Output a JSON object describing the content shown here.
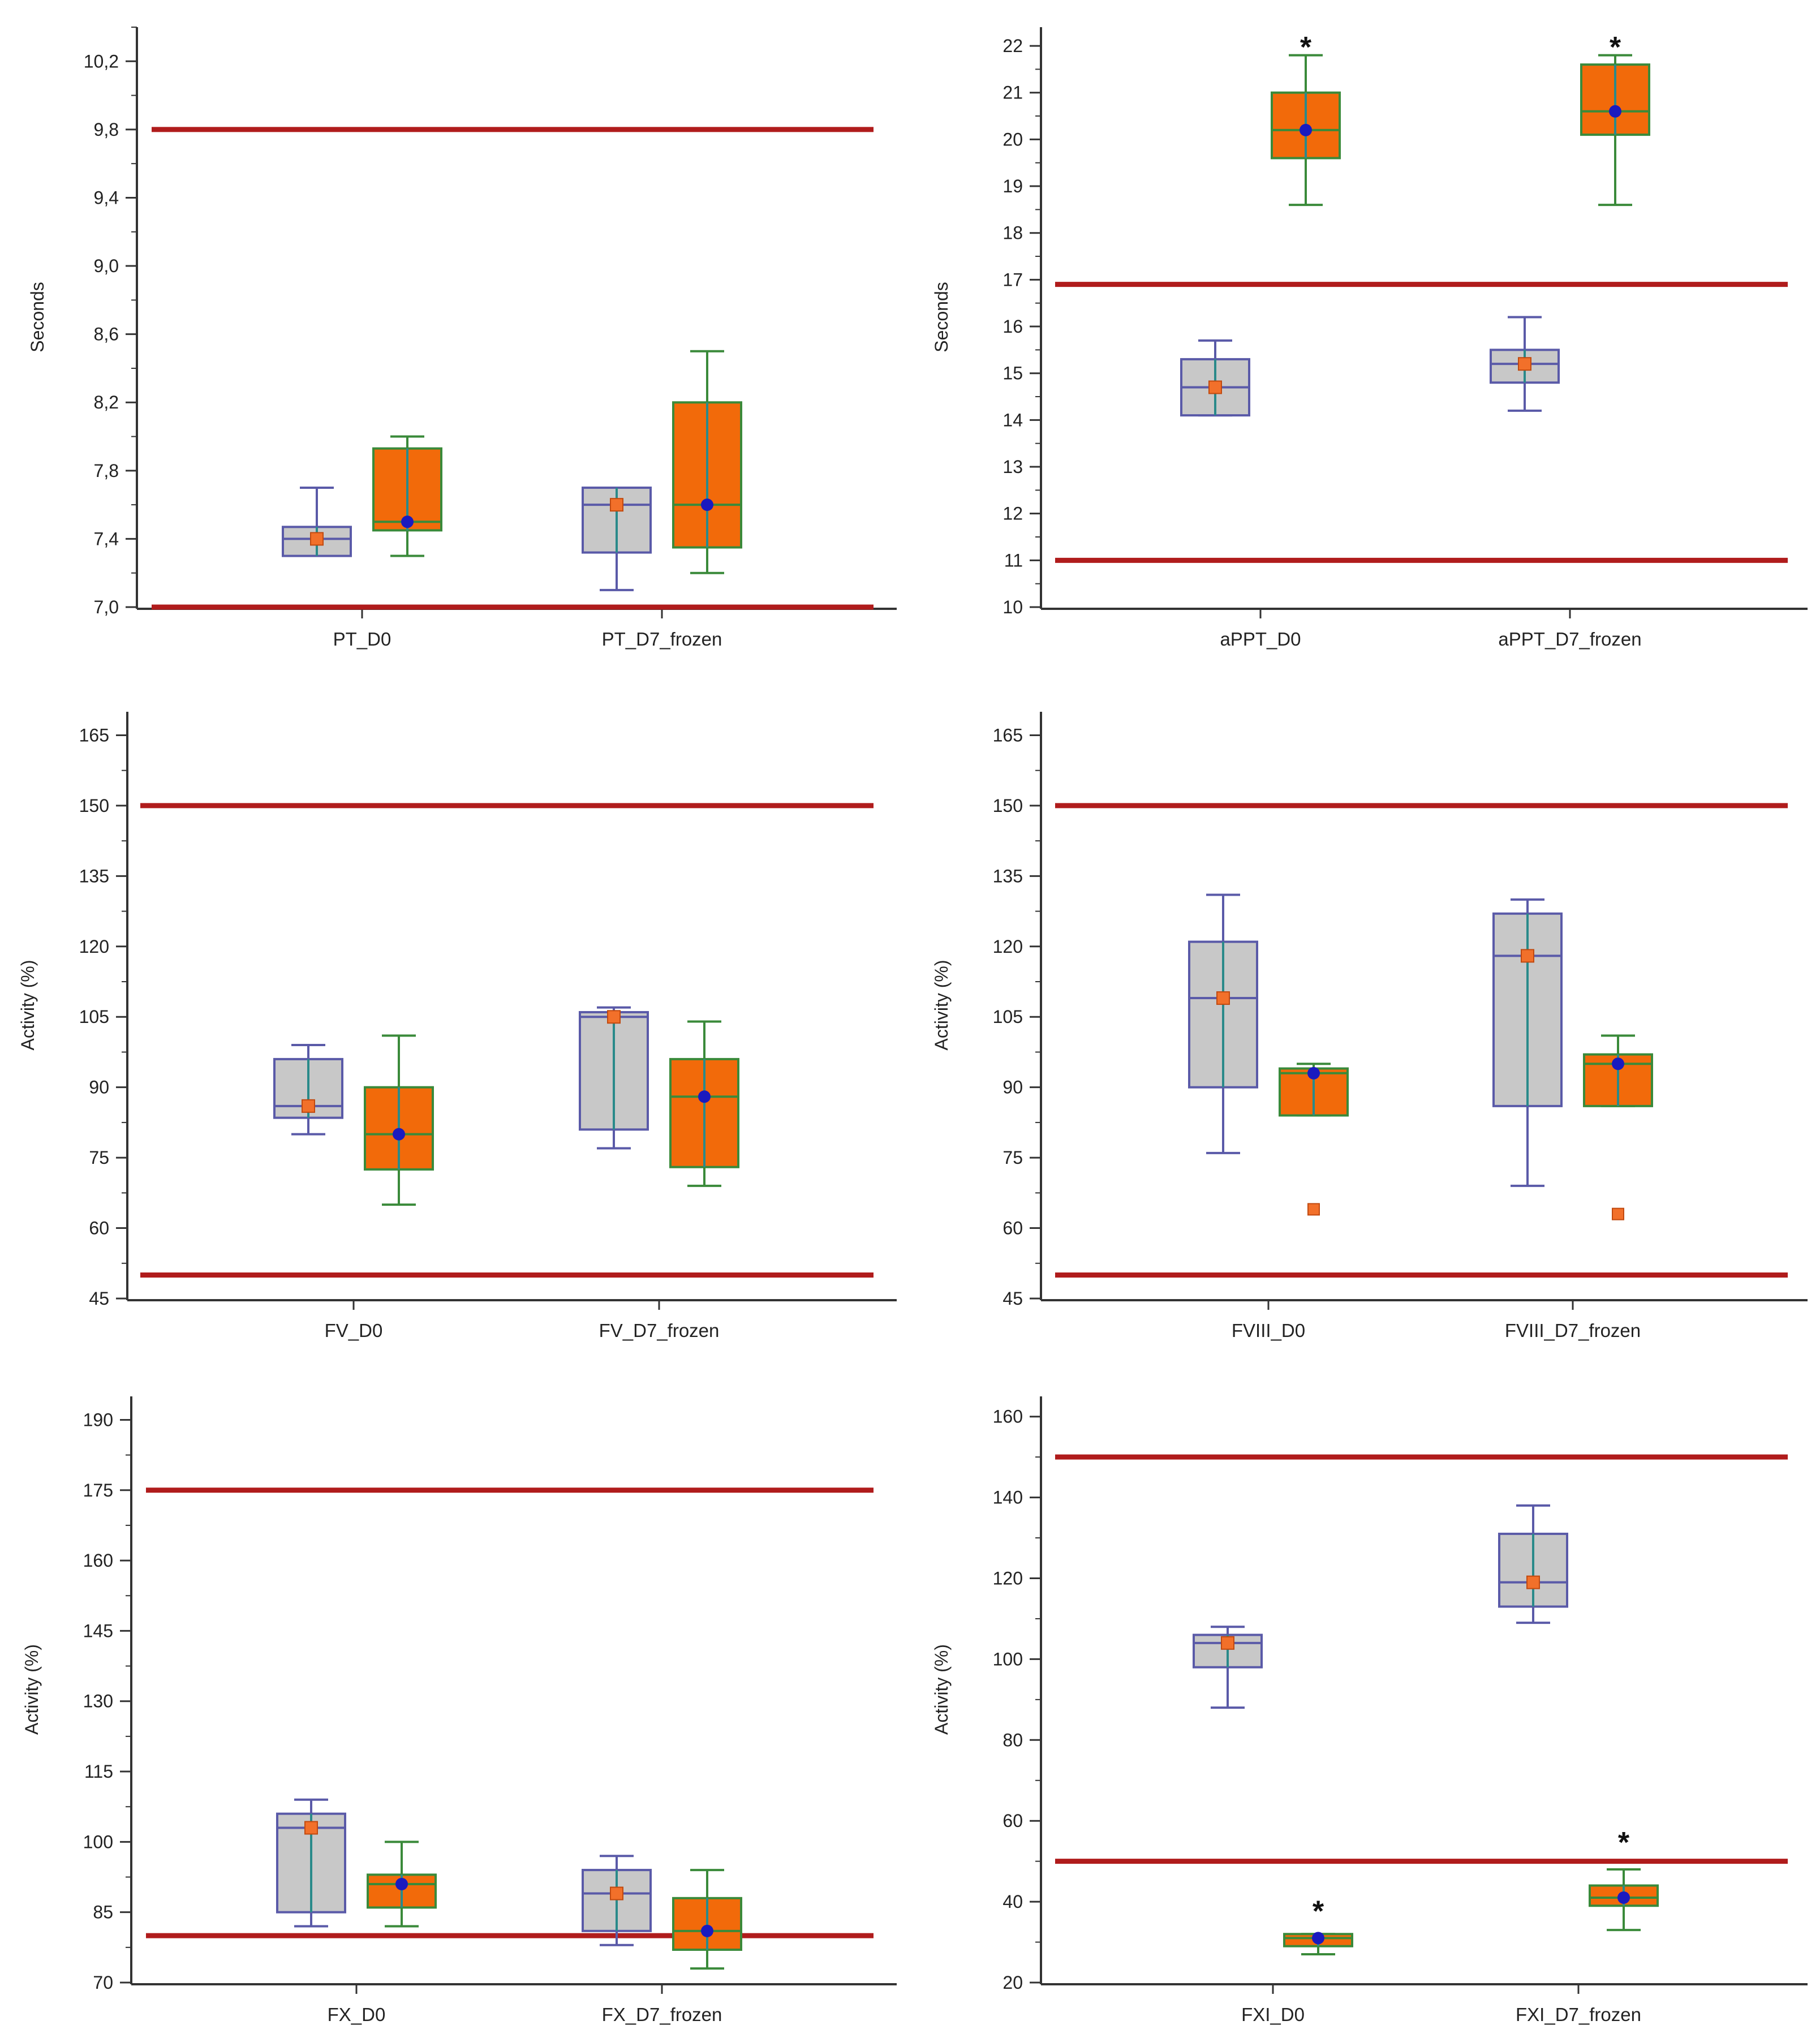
{
  "colors": {
    "reference_line": "#b01c1c",
    "gray_fill": "#c8c8c8",
    "gray_stroke": "#5a5aa8",
    "orange_fill": "#f26a0a",
    "orange_stroke": "#3a8a3a",
    "whisker_gray": "#5a5aa8",
    "whisker_orange": "#3a8a3a",
    "center_stem": "#2a8a8a",
    "mean_orange": "#f2702a",
    "mean_blue": "#1a1abf",
    "axis": "#333333"
  },
  "legend_note": "gray box = first series, orange box = second series",
  "chart_data": [
    {
      "type": "box",
      "panel": "top-left",
      "ylabel": "Seconds",
      "ylim": [
        7.0,
        10.4
      ],
      "yticks": [
        7.0,
        7.4,
        7.8,
        8.2,
        8.6,
        9.0,
        9.4,
        9.8,
        10.2
      ],
      "ytick_labels": [
        "7,0",
        "7,4",
        "7,8",
        "8,2",
        "8,6",
        "9,0",
        "9,4",
        "9,8",
        "10,2"
      ],
      "minor_step": 0.2,
      "reference_lines": [
        7.0,
        9.8
      ],
      "categories": [
        "PT_D0",
        "PT_D7_frozen"
      ],
      "boxes": [
        {
          "group": 0,
          "series": "gray",
          "whisker_low": 7.3,
          "q1": 7.3,
          "median": 7.4,
          "q3": 7.47,
          "whisker_high": 7.7,
          "mean": 7.4,
          "mean_style": "orange-square"
        },
        {
          "group": 0,
          "series": "orange",
          "whisker_low": 7.3,
          "q1": 7.45,
          "median": 7.5,
          "q3": 7.93,
          "whisker_high": 8.0,
          "mean": 7.5,
          "mean_style": "blue-dot"
        },
        {
          "group": 1,
          "series": "gray",
          "whisker_low": 7.1,
          "q1": 7.32,
          "median": 7.6,
          "q3": 7.7,
          "whisker_high": 7.7,
          "mean": 7.6,
          "mean_style": "orange-square"
        },
        {
          "group": 1,
          "series": "orange",
          "whisker_low": 7.2,
          "q1": 7.35,
          "median": 7.6,
          "q3": 8.2,
          "whisker_high": 8.5,
          "mean": 7.6,
          "mean_style": "blue-dot"
        }
      ],
      "outliers": [],
      "significance": []
    },
    {
      "type": "box",
      "panel": "top-right",
      "ylabel": "Seconds",
      "ylim": [
        10,
        22.4
      ],
      "yticks": [
        10,
        11,
        12,
        13,
        14,
        15,
        16,
        17,
        18,
        19,
        20,
        21,
        22
      ],
      "ytick_labels": [
        "10",
        "11",
        "12",
        "13",
        "14",
        "15",
        "16",
        "17",
        "18",
        "19",
        "20",
        "21",
        "22"
      ],
      "minor_step": 0.5,
      "reference_lines": [
        11.0,
        16.9
      ],
      "categories": [
        "aPPT_D0",
        "aPPT_D7_frozen"
      ],
      "boxes": [
        {
          "group": 0,
          "series": "gray",
          "whisker_low": 14.1,
          "q1": 14.1,
          "median": 14.7,
          "q3": 15.3,
          "whisker_high": 15.7,
          "mean": 14.7,
          "mean_style": "orange-square"
        },
        {
          "group": 0,
          "series": "orange",
          "whisker_low": 18.6,
          "q1": 19.6,
          "median": 20.2,
          "q3": 21.0,
          "whisker_high": 21.8,
          "mean": 20.2,
          "mean_style": "blue-dot"
        },
        {
          "group": 1,
          "series": "gray",
          "whisker_low": 14.2,
          "q1": 14.8,
          "median": 15.2,
          "q3": 15.5,
          "whisker_high": 16.2,
          "mean": 15.2,
          "mean_style": "orange-square"
        },
        {
          "group": 1,
          "series": "orange",
          "whisker_low": 18.6,
          "q1": 20.1,
          "median": 20.6,
          "q3": 21.6,
          "whisker_high": 21.8,
          "mean": 20.6,
          "mean_style": "blue-dot"
        }
      ],
      "outliers": [],
      "significance": [
        {
          "group": 0,
          "series": "orange",
          "y": 22.0,
          "label": "*"
        },
        {
          "group": 1,
          "series": "orange",
          "y": 22.0,
          "label": "*"
        }
      ]
    },
    {
      "type": "box",
      "panel": "middle-left",
      "ylabel": "Activity (%)",
      "ylim": [
        45,
        170
      ],
      "yticks": [
        45,
        60,
        75,
        90,
        105,
        120,
        135,
        150,
        165
      ],
      "ytick_labels": [
        "45",
        "60",
        "75",
        "90",
        "105",
        "120",
        "135",
        "150",
        "165"
      ],
      "minor_step": 7.5,
      "reference_lines": [
        50,
        150
      ],
      "categories": [
        "FV_D0",
        "FV_D7_frozen"
      ],
      "boxes": [
        {
          "group": 0,
          "series": "gray",
          "whisker_low": 80,
          "q1": 83.5,
          "median": 86,
          "q3": 96,
          "whisker_high": 99,
          "mean": 86,
          "mean_style": "orange-square"
        },
        {
          "group": 0,
          "series": "orange",
          "whisker_low": 65,
          "q1": 72.5,
          "median": 80,
          "q3": 90,
          "whisker_high": 101,
          "mean": 80,
          "mean_style": "blue-dot"
        },
        {
          "group": 1,
          "series": "gray",
          "whisker_low": 77,
          "q1": 81,
          "median": 105,
          "q3": 106,
          "whisker_high": 107,
          "mean": 105,
          "mean_style": "orange-square"
        },
        {
          "group": 1,
          "series": "orange",
          "whisker_low": 69,
          "q1": 73,
          "median": 88,
          "q3": 96,
          "whisker_high": 104,
          "mean": 88,
          "mean_style": "blue-dot"
        }
      ],
      "outliers": [],
      "significance": []
    },
    {
      "type": "box",
      "panel": "middle-right",
      "ylabel": "Activity (%)",
      "ylim": [
        45,
        170
      ],
      "yticks": [
        45,
        60,
        75,
        90,
        105,
        120,
        135,
        150,
        165
      ],
      "ytick_labels": [
        "45",
        "60",
        "75",
        "90",
        "105",
        "120",
        "135",
        "150",
        "165"
      ],
      "minor_step": 7.5,
      "reference_lines": [
        50,
        150
      ],
      "categories": [
        "FVIII_D0",
        "FVIII_D7_frozen"
      ],
      "boxes": [
        {
          "group": 0,
          "series": "gray",
          "whisker_low": 76,
          "q1": 90,
          "median": 109,
          "q3": 121,
          "whisker_high": 131,
          "mean": 109,
          "mean_style": "orange-square"
        },
        {
          "group": 0,
          "series": "orange",
          "whisker_low": 84,
          "q1": 84,
          "median": 93,
          "q3": 94,
          "whisker_high": 95,
          "mean": 93,
          "mean_style": "blue-dot"
        },
        {
          "group": 1,
          "series": "gray",
          "whisker_low": 69,
          "q1": 86,
          "median": 118,
          "q3": 127,
          "whisker_high": 130,
          "mean": 118,
          "mean_style": "orange-square"
        },
        {
          "group": 1,
          "series": "orange",
          "whisker_low": 86,
          "q1": 86,
          "median": 95,
          "q3": 97,
          "whisker_high": 101,
          "mean": 95,
          "mean_style": "blue-dot"
        }
      ],
      "outliers": [
        {
          "group": 0,
          "series": "orange",
          "value": 64
        },
        {
          "group": 1,
          "series": "orange",
          "value": 63
        }
      ],
      "significance": []
    },
    {
      "type": "box",
      "panel": "bottom-left",
      "ylabel": "Activity (%)",
      "ylim": [
        70,
        195
      ],
      "yticks": [
        70,
        85,
        100,
        115,
        130,
        145,
        160,
        175,
        190
      ],
      "ytick_labels": [
        "70",
        "85",
        "100",
        "115",
        "130",
        "145",
        "160",
        "175",
        "190"
      ],
      "minor_step": 7.5,
      "reference_lines": [
        80,
        175
      ],
      "categories": [
        "FX_D0",
        "FX_D7_frozen"
      ],
      "boxes": [
        {
          "group": 0,
          "series": "gray",
          "whisker_low": 82,
          "q1": 85,
          "median": 103,
          "q3": 106,
          "whisker_high": 109,
          "mean": 103,
          "mean_style": "orange-square"
        },
        {
          "group": 0,
          "series": "orange",
          "whisker_low": 82,
          "q1": 86,
          "median": 91,
          "q3": 93,
          "whisker_high": 100,
          "mean": 91,
          "mean_style": "blue-dot"
        },
        {
          "group": 1,
          "series": "gray",
          "whisker_low": 78,
          "q1": 81,
          "median": 89,
          "q3": 94,
          "whisker_high": 97,
          "mean": 89,
          "mean_style": "orange-square"
        },
        {
          "group": 1,
          "series": "orange",
          "whisker_low": 73,
          "q1": 77,
          "median": 81,
          "q3": 88,
          "whisker_high": 94,
          "mean": 81,
          "mean_style": "blue-dot"
        }
      ],
      "outliers": [],
      "significance": []
    },
    {
      "type": "box",
      "panel": "bottom-right",
      "ylabel": "Activity (%)",
      "ylim": [
        20,
        165
      ],
      "yticks": [
        20,
        40,
        60,
        80,
        100,
        120,
        140,
        160
      ],
      "ytick_labels": [
        "20",
        "40",
        "60",
        "80",
        "100",
        "120",
        "140",
        "160"
      ],
      "minor_step": 10,
      "reference_lines": [
        50,
        150
      ],
      "categories": [
        "FXI_D0",
        "FXI_D7_frozen"
      ],
      "boxes": [
        {
          "group": 0,
          "series": "gray",
          "whisker_low": 88,
          "q1": 98,
          "median": 104,
          "q3": 106,
          "whisker_high": 108,
          "mean": 104,
          "mean_style": "orange-square"
        },
        {
          "group": 0,
          "series": "orange",
          "whisker_low": 27,
          "q1": 29,
          "median": 31,
          "q3": 32,
          "whisker_high": 32,
          "mean": 31,
          "mean_style": "blue-dot"
        },
        {
          "group": 1,
          "series": "gray",
          "whisker_low": 109,
          "q1": 113,
          "median": 119,
          "q3": 131,
          "whisker_high": 138,
          "mean": 119,
          "mean_style": "orange-square"
        },
        {
          "group": 1,
          "series": "orange",
          "whisker_low": 33,
          "q1": 39,
          "median": 41,
          "q3": 44,
          "whisker_high": 48,
          "mean": 41,
          "mean_style": "blue-dot"
        }
      ],
      "outliers": [],
      "significance": [
        {
          "group": 0,
          "series": "orange",
          "y": 38,
          "label": "*"
        },
        {
          "group": 1,
          "series": "orange",
          "y": 55,
          "label": "*"
        }
      ]
    }
  ]
}
